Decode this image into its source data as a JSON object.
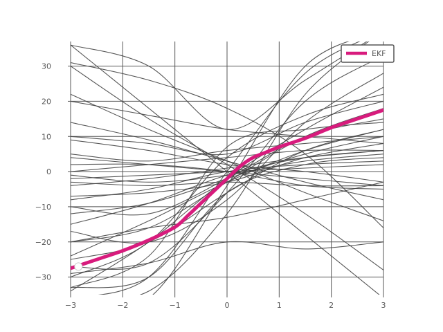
{
  "chart_data": {
    "type": "line",
    "title": "",
    "xlabel": "",
    "ylabel": "",
    "xlim": [
      -3,
      3
    ],
    "ylim": [
      -35,
      37
    ],
    "x_ticks": [
      -3,
      -2,
      -1,
      0,
      1,
      2,
      3
    ],
    "x_tick_labels": [
      "−3",
      "−2",
      "−1",
      "0",
      "1",
      "2",
      "3"
    ],
    "y_ticks": [
      -30,
      -20,
      -10,
      0,
      10,
      20,
      30
    ],
    "y_tick_labels": [
      "−30",
      "−20",
      "−10",
      "0",
      "10",
      "20",
      "30"
    ],
    "grid": true,
    "legend": {
      "position": "top-right",
      "entries": [
        "EKF"
      ]
    },
    "series": [
      {
        "name": "EKF",
        "color": "#d81b7d",
        "x": [
          -3,
          -2.5,
          -2,
          -1.5,
          -1,
          -0.75,
          -0.5,
          -0.25,
          0,
          0.25,
          0.5,
          0.75,
          1,
          1.5,
          2,
          2.5,
          3
        ],
        "y": [
          -27.5,
          -25,
          -22.5,
          -19.5,
          -15.8,
          -12.5,
          -9,
          -5.5,
          -2,
          1.5,
          4,
          5.5,
          7,
          9.5,
          12.5,
          15,
          17.5
        ]
      }
    ],
    "start_marker": {
      "x": -2.85,
      "y": -27
    },
    "background_curves_color": "#444444",
    "background_curves": [
      {
        "x": [
          -3,
          -1.5,
          0,
          1.5,
          3
        ],
        "y": [
          -34,
          -20,
          -2,
          12,
          24
        ]
      },
      {
        "x": [
          -3,
          -1.5,
          0,
          1.5,
          3
        ],
        "y": [
          -24,
          -14,
          -3,
          6,
          12
        ]
      },
      {
        "x": [
          -3,
          -1.5,
          0,
          1.5,
          3
        ],
        "y": [
          -15,
          -9,
          -1,
          4,
          6
        ]
      },
      {
        "x": [
          -3,
          -1.5,
          0,
          1.5,
          3
        ],
        "y": [
          -8,
          -5,
          0,
          2,
          3
        ]
      },
      {
        "x": [
          -3,
          -1.5,
          0,
          1.5,
          3
        ],
        "y": [
          -2,
          -1,
          0,
          1,
          2
        ]
      },
      {
        "x": [
          -3,
          -1.5,
          0,
          1.5,
          3
        ],
        "y": [
          4,
          2,
          0,
          -2,
          -4
        ]
      },
      {
        "x": [
          -3,
          -1.5,
          0,
          1.5,
          3
        ],
        "y": [
          36,
          18,
          0,
          -18,
          -36
        ]
      },
      {
        "x": [
          -3,
          -1.5,
          0,
          1.5,
          3
        ],
        "y": [
          30,
          15,
          2,
          -12,
          -28
        ]
      },
      {
        "x": [
          -3,
          -1.5,
          0,
          1.5,
          3
        ],
        "y": [
          22,
          12,
          3,
          -6,
          -14
        ]
      },
      {
        "x": [
          -3,
          -1.5,
          0,
          1.5,
          3
        ],
        "y": [
          14,
          9,
          3,
          -3,
          -8
        ]
      },
      {
        "x": [
          -3,
          -1.5,
          0,
          1.5,
          3
        ],
        "y": [
          9,
          6,
          2,
          0,
          -3
        ]
      },
      {
        "x": [
          -3,
          -1.5,
          0,
          1.5,
          3
        ],
        "y": [
          -4,
          -2,
          1,
          4,
          6
        ]
      },
      {
        "x": [
          -3,
          -1.5,
          0,
          1.5,
          3
        ],
        "y": [
          -12,
          -9,
          -2,
          5,
          10
        ]
      },
      {
        "x": [
          -3,
          -1.5,
          0,
          1.5,
          3
        ],
        "y": [
          -27,
          -26,
          -6,
          20,
          33
        ]
      },
      {
        "x": [
          -3,
          -1.5,
          0,
          1.5,
          3
        ],
        "y": [
          -38,
          -36,
          -4,
          30,
          40
        ]
      },
      {
        "x": [
          -3,
          -1.5,
          0,
          1.5,
          3
        ],
        "y": [
          -36,
          -30,
          0,
          28,
          40
        ]
      },
      {
        "x": [
          -3,
          -1.5,
          0,
          1.5,
          3
        ],
        "y": [
          -20,
          -16,
          -3,
          10,
          18
        ]
      },
      {
        "x": [
          -3,
          -1.5,
          0,
          1.5,
          3
        ],
        "y": [
          -30,
          -20,
          4,
          16,
          22
        ]
      },
      {
        "x": [
          -3,
          -1.5,
          0,
          1.5,
          3
        ],
        "y": [
          -33,
          -24,
          7,
          12,
          14
        ]
      },
      {
        "x": [
          -3,
          -1.5,
          0,
          1.5,
          3
        ],
        "y": [
          -29,
          -26,
          -20,
          -22,
          -20
        ]
      },
      {
        "x": [
          -3,
          -1.5,
          0,
          1.5,
          3
        ],
        "y": [
          -33,
          -30,
          -6,
          2,
          4
        ]
      },
      {
        "x": [
          -3,
          -1.5,
          0,
          1.5,
          3
        ],
        "y": [
          -10,
          -12,
          -2,
          10,
          15
        ]
      },
      {
        "x": [
          -3,
          -1.5,
          0,
          1.5,
          3
        ],
        "y": [
          2,
          2,
          0,
          -4,
          -5
        ]
      },
      {
        "x": [
          -3,
          -1.5,
          0,
          1.5,
          3
        ],
        "y": [
          -3,
          -4,
          -3,
          -4,
          -4
        ]
      },
      {
        "x": [
          -3,
          -1.5,
          0,
          1.5,
          3
        ],
        "y": [
          20,
          16,
          12,
          10,
          8
        ]
      },
      {
        "x": [
          -3,
          -1.5,
          0,
          1.5,
          3
        ],
        "y": [
          31,
          26,
          18,
          5,
          -16
        ]
      },
      {
        "x": [
          -3,
          -1.5,
          0,
          1.5,
          3
        ],
        "y": [
          -25,
          -20,
          -6,
          6,
          12
        ]
      },
      {
        "x": [
          -3,
          -1.5,
          0,
          1.5,
          3
        ],
        "y": [
          -17,
          -20,
          -8,
          14,
          28
        ]
      },
      {
        "x": [
          -3,
          -1.5,
          0,
          1.5,
          3
        ],
        "y": [
          -7,
          -6,
          -3,
          4,
          8
        ]
      },
      {
        "x": [
          -3,
          -1.5,
          0,
          1.5,
          3
        ],
        "y": [
          36,
          30,
          12,
          26,
          40
        ]
      },
      {
        "x": [
          -3,
          -1.5,
          0,
          1.5,
          3
        ],
        "y": [
          5,
          3,
          6,
          8,
          10
        ]
      },
      {
        "x": [
          -3,
          -1.5,
          0,
          1.5,
          3
        ],
        "y": [
          -1,
          -3,
          -1,
          3,
          5
        ]
      },
      {
        "x": [
          -3,
          -1.5,
          0,
          1.5,
          3
        ],
        "y": [
          0,
          2,
          4,
          6,
          6
        ]
      },
      {
        "x": [
          -3,
          -1.5,
          0,
          1.5,
          3
        ],
        "y": [
          -36,
          -34,
          -12,
          22,
          40
        ]
      },
      {
        "x": [
          -3,
          -1.5,
          0,
          1.5,
          3
        ],
        "y": [
          10,
          8,
          5,
          14,
          20
        ]
      },
      {
        "x": [
          -3,
          -1.5,
          0,
          1.5,
          3
        ],
        "y": [
          -20,
          -16,
          -13,
          -8,
          -3
        ]
      }
    ]
  }
}
